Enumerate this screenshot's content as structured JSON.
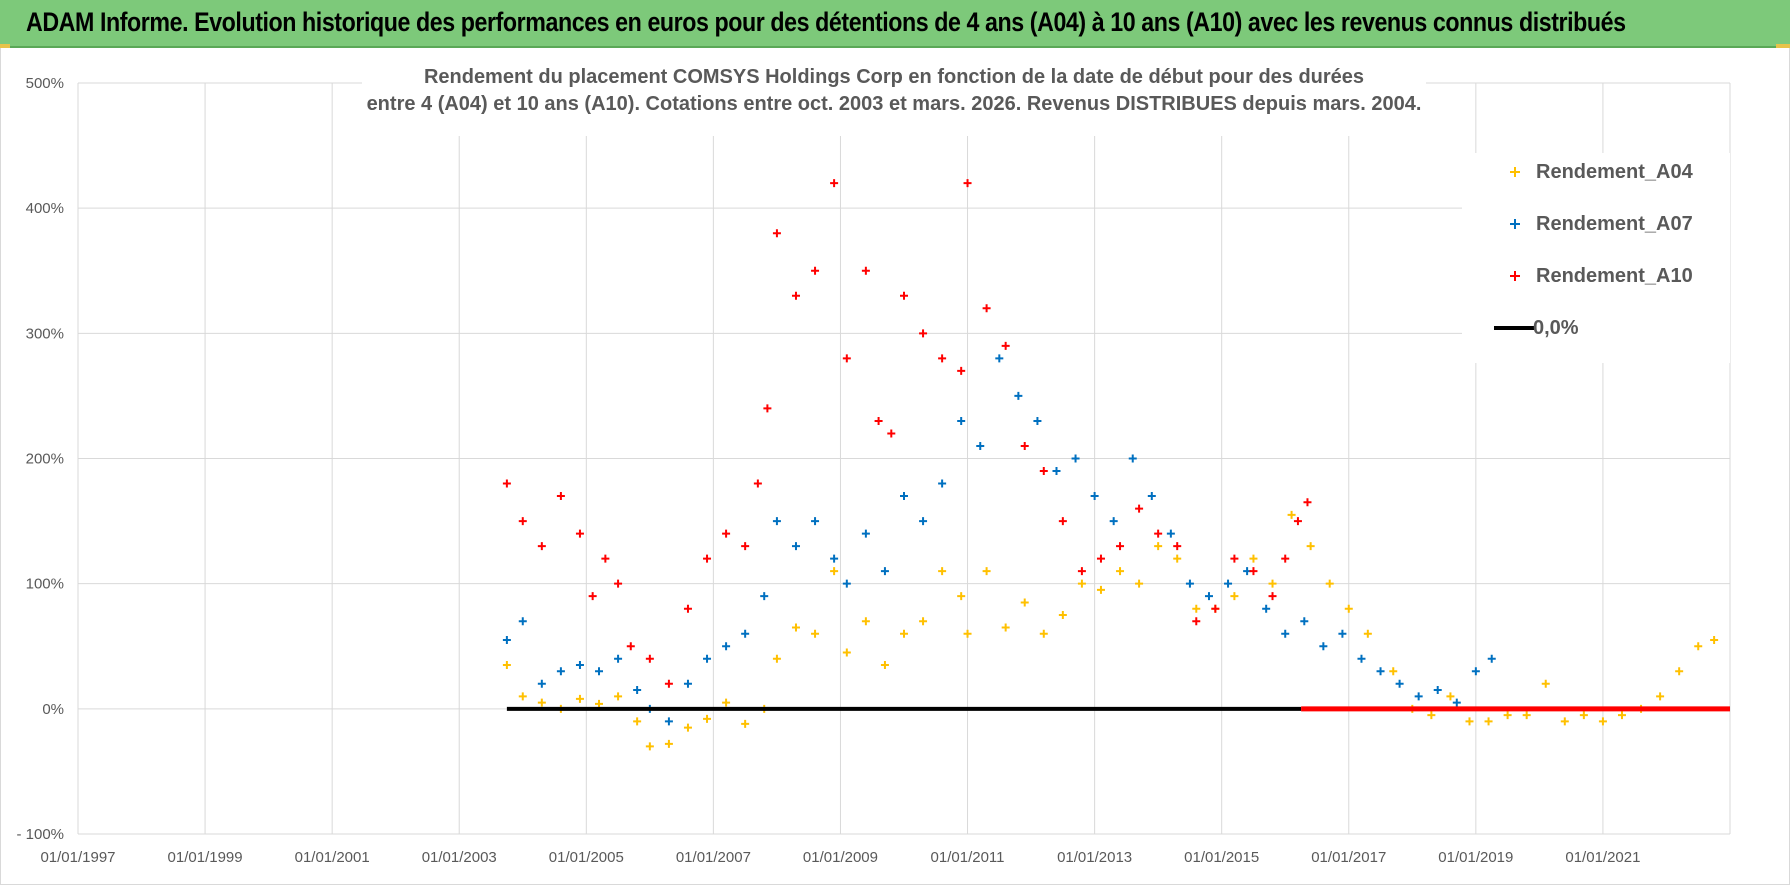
{
  "banner": {
    "title": "ADAM Informe. Evolution historique des performances en euros pour des détentions de 4 ans (A04) à 10 ans (A10) avec les revenus connus distribués",
    "background": "#7dc97a"
  },
  "chart_data": {
    "type": "scatter",
    "title_line1": "Rendement du placement COMSYS Holdings Corp en fonction de la date de début pour des durées",
    "title_line2": "entre 4 (A04) et 10 ans (A10).  Cotations entre oct. 2003 et mars. 2026. Revenus DISTRIBUES depuis mars. 2004.",
    "xlabel": "",
    "ylabel": "",
    "x_ticks": [
      "01/01/1997",
      "01/01/1999",
      "01/01/2001",
      "01/01/2003",
      "01/01/2005",
      "01/01/2007",
      "01/01/2009",
      "01/01/2011",
      "01/01/2013",
      "01/01/2015",
      "01/01/2017",
      "01/01/2019",
      "01/01/2021"
    ],
    "xlim": [
      1997.0,
      2023.0
    ],
    "y_ticks": [
      "500%",
      "400%",
      "300%",
      "200%",
      "100%",
      "0%",
      "- 100%"
    ],
    "ylim": [
      -100,
      500
    ],
    "grid": true,
    "legend_position": "top-right",
    "series": [
      {
        "name": "Rendement_A04",
        "color": "#ffc000",
        "marker": "+",
        "points": [
          [
            2003.75,
            35
          ],
          [
            2004.0,
            10
          ],
          [
            2004.3,
            5
          ],
          [
            2004.6,
            0
          ],
          [
            2004.9,
            8
          ],
          [
            2005.2,
            4
          ],
          [
            2005.5,
            10
          ],
          [
            2005.8,
            -10
          ],
          [
            2006.0,
            -30
          ],
          [
            2006.3,
            -28
          ],
          [
            2006.6,
            -15
          ],
          [
            2006.9,
            -8
          ],
          [
            2007.2,
            5
          ],
          [
            2007.5,
            -12
          ],
          [
            2007.8,
            0
          ],
          [
            2008.0,
            40
          ],
          [
            2008.3,
            65
          ],
          [
            2008.6,
            60
          ],
          [
            2008.9,
            110
          ],
          [
            2009.1,
            45
          ],
          [
            2009.4,
            70
          ],
          [
            2009.7,
            35
          ],
          [
            2010.0,
            60
          ],
          [
            2010.3,
            70
          ],
          [
            2010.6,
            110
          ],
          [
            2010.9,
            90
          ],
          [
            2011.0,
            60
          ],
          [
            2011.3,
            110
          ],
          [
            2011.6,
            65
          ],
          [
            2011.9,
            85
          ],
          [
            2012.2,
            60
          ],
          [
            2012.5,
            75
          ],
          [
            2012.8,
            100
          ],
          [
            2013.1,
            95
          ],
          [
            2013.4,
            110
          ],
          [
            2013.7,
            100
          ],
          [
            2014.0,
            130
          ],
          [
            2014.3,
            120
          ],
          [
            2014.6,
            80
          ],
          [
            2014.9,
            80
          ],
          [
            2015.2,
            90
          ],
          [
            2015.5,
            120
          ],
          [
            2015.8,
            100
          ],
          [
            2016.1,
            155
          ],
          [
            2016.4,
            130
          ],
          [
            2016.7,
            100
          ],
          [
            2017.0,
            80
          ],
          [
            2017.3,
            60
          ],
          [
            2017.7,
            30
          ],
          [
            2018.0,
            0
          ],
          [
            2018.3,
            -5
          ],
          [
            2018.6,
            10
          ],
          [
            2018.9,
            -10
          ],
          [
            2019.2,
            -10
          ],
          [
            2019.5,
            -5
          ],
          [
            2019.8,
            -5
          ],
          [
            2020.1,
            20
          ],
          [
            2020.4,
            -10
          ],
          [
            2020.7,
            -5
          ],
          [
            2021.0,
            -10
          ],
          [
            2021.3,
            -5
          ],
          [
            2021.6,
            0
          ],
          [
            2021.9,
            10
          ],
          [
            2022.2,
            30
          ],
          [
            2022.5,
            50
          ],
          [
            2022.75,
            55
          ]
        ]
      },
      {
        "name": "Rendement_A07",
        "color": "#0070c0",
        "marker": "+",
        "points": [
          [
            2003.75,
            55
          ],
          [
            2004.0,
            70
          ],
          [
            2004.3,
            20
          ],
          [
            2004.6,
            30
          ],
          [
            2004.9,
            35
          ],
          [
            2005.2,
            30
          ],
          [
            2005.5,
            40
          ],
          [
            2005.8,
            15
          ],
          [
            2006.0,
            0
          ],
          [
            2006.3,
            -10
          ],
          [
            2006.6,
            20
          ],
          [
            2006.9,
            40
          ],
          [
            2007.2,
            50
          ],
          [
            2007.5,
            60
          ],
          [
            2007.8,
            90
          ],
          [
            2008.0,
            150
          ],
          [
            2008.3,
            130
          ],
          [
            2008.6,
            150
          ],
          [
            2008.9,
            120
          ],
          [
            2009.1,
            100
          ],
          [
            2009.4,
            140
          ],
          [
            2009.7,
            110
          ],
          [
            2010.0,
            170
          ],
          [
            2010.3,
            150
          ],
          [
            2010.6,
            180
          ],
          [
            2010.9,
            230
          ],
          [
            2011.2,
            210
          ],
          [
            2011.5,
            280
          ],
          [
            2011.8,
            250
          ],
          [
            2012.1,
            230
          ],
          [
            2012.4,
            190
          ],
          [
            2012.7,
            200
          ],
          [
            2013.0,
            170
          ],
          [
            2013.3,
            150
          ],
          [
            2013.6,
            200
          ],
          [
            2013.9,
            170
          ],
          [
            2014.2,
            140
          ],
          [
            2014.5,
            100
          ],
          [
            2014.8,
            90
          ],
          [
            2015.1,
            100
          ],
          [
            2015.4,
            110
          ],
          [
            2015.7,
            80
          ],
          [
            2016.0,
            60
          ],
          [
            2016.3,
            70
          ],
          [
            2016.6,
            50
          ],
          [
            2016.9,
            60
          ],
          [
            2017.2,
            40
          ],
          [
            2017.5,
            30
          ],
          [
            2017.8,
            20
          ],
          [
            2018.1,
            10
          ],
          [
            2018.4,
            15
          ],
          [
            2018.7,
            5
          ],
          [
            2019.0,
            30
          ],
          [
            2019.25,
            40
          ]
        ]
      },
      {
        "name": "Rendement_A10",
        "color": "#ff0000",
        "marker": "+",
        "points": [
          [
            2003.75,
            180
          ],
          [
            2004.0,
            150
          ],
          [
            2004.3,
            130
          ],
          [
            2004.6,
            170
          ],
          [
            2004.9,
            140
          ],
          [
            2005.1,
            90
          ],
          [
            2005.3,
            120
          ],
          [
            2005.5,
            100
          ],
          [
            2005.7,
            50
          ],
          [
            2006.0,
            40
          ],
          [
            2006.3,
            20
          ],
          [
            2006.6,
            80
          ],
          [
            2006.9,
            120
          ],
          [
            2007.2,
            140
          ],
          [
            2007.5,
            130
          ],
          [
            2007.7,
            180
          ],
          [
            2007.85,
            240
          ],
          [
            2008.0,
            380
          ],
          [
            2008.3,
            330
          ],
          [
            2008.6,
            350
          ],
          [
            2008.9,
            420
          ],
          [
            2009.1,
            280
          ],
          [
            2009.4,
            350
          ],
          [
            2009.6,
            230
          ],
          [
            2009.8,
            220
          ],
          [
            2010.0,
            330
          ],
          [
            2010.3,
            300
          ],
          [
            2010.6,
            280
          ],
          [
            2010.9,
            270
          ],
          [
            2011.0,
            420
          ],
          [
            2011.3,
            320
          ],
          [
            2011.6,
            290
          ],
          [
            2011.9,
            210
          ],
          [
            2012.2,
            190
          ],
          [
            2012.5,
            150
          ],
          [
            2012.8,
            110
          ],
          [
            2013.1,
            120
          ],
          [
            2013.4,
            130
          ],
          [
            2013.7,
            160
          ],
          [
            2014.0,
            140
          ],
          [
            2014.3,
            130
          ],
          [
            2014.6,
            70
          ],
          [
            2014.9,
            80
          ],
          [
            2015.2,
            120
          ],
          [
            2015.5,
            110
          ],
          [
            2015.8,
            90
          ],
          [
            2016.0,
            120
          ],
          [
            2016.2,
            150
          ],
          [
            2016.35,
            165
          ]
        ]
      },
      {
        "name": "0,0%",
        "color": "#000000",
        "marker": "line",
        "points": [
          [
            2003.75,
            0
          ],
          [
            2016.25,
            0
          ]
        ]
      }
    ]
  }
}
